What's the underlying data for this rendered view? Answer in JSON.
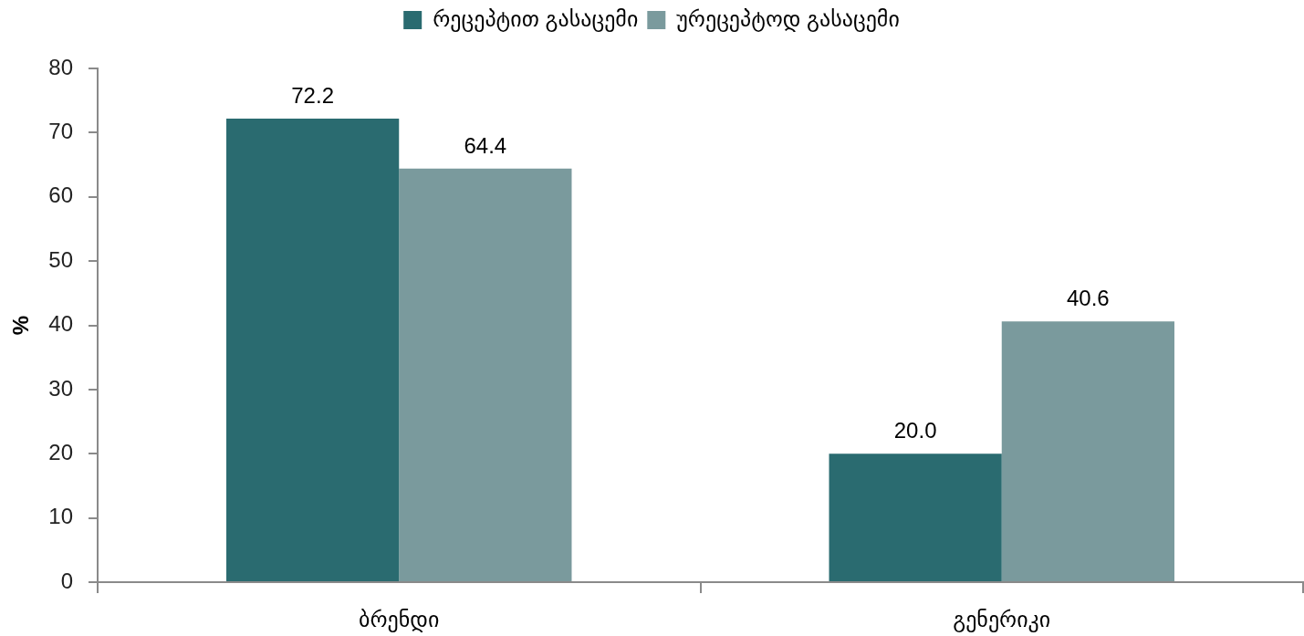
{
  "chart_data": {
    "type": "bar",
    "categories": [
      "ბრენდი",
      "გენერიკი"
    ],
    "series": [
      {
        "name": "რეცეპტით გასაცემი",
        "color": "#2a6b70",
        "values": [
          72.2,
          20.0
        ],
        "value_labels": [
          "72.2",
          "20.0"
        ]
      },
      {
        "name": "ურეცეპტოდ გასაცემი",
        "color": "#7a9a9d",
        "values": [
          64.4,
          40.6
        ],
        "value_labels": [
          "64.4",
          "40.6"
        ]
      }
    ],
    "ylabel": "%",
    "ylim": [
      0,
      80
    ],
    "yticks": [
      0,
      10,
      20,
      30,
      40,
      50,
      60,
      70,
      80
    ],
    "legend": "top",
    "grid": false
  }
}
